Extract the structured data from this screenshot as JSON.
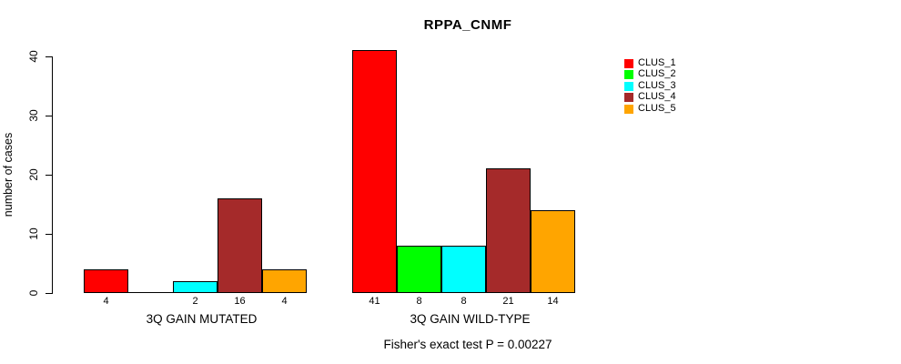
{
  "title": "RPPA_CNMF",
  "footer": "Fisher's exact test P = 0.00227",
  "chart_data": {
    "type": "bar",
    "title": "RPPA_CNMF",
    "ylabel": "number of cases",
    "xlabel": "",
    "ylim": [
      0,
      40
    ],
    "yticks": [
      "0",
      "10",
      "20",
      "30",
      "40"
    ],
    "grid": false,
    "legend_position": "right-outside",
    "categories": [
      "3Q GAIN MUTATED",
      "3Q GAIN WILD-TYPE"
    ],
    "series": [
      {
        "name": "CLUS_1",
        "color": "#ff0000",
        "values": [
          4,
          41
        ]
      },
      {
        "name": "CLUS_2",
        "color": "#00ff00",
        "values": [
          0,
          8
        ]
      },
      {
        "name": "CLUS_3",
        "color": "#00ffff",
        "values": [
          2,
          8
        ]
      },
      {
        "name": "CLUS_4",
        "color": "#a52a2a",
        "values": [
          16,
          21
        ]
      },
      {
        "name": "CLUS_5",
        "color": "#ffa500",
        "values": [
          4,
          14
        ]
      }
    ],
    "groups": [
      {
        "label": "3Q GAIN MUTATED",
        "values": [
          4,
          0,
          2,
          16,
          4
        ],
        "bar_labels": [
          "4",
          "",
          "2",
          "16",
          "4"
        ]
      },
      {
        "label": "3Q GAIN WILD-TYPE",
        "values": [
          41,
          8,
          8,
          21,
          14
        ],
        "bar_labels": [
          "41",
          "8",
          "8",
          "21",
          "14"
        ]
      }
    ],
    "annotation": "Fisher's exact test P = 0.00227"
  }
}
